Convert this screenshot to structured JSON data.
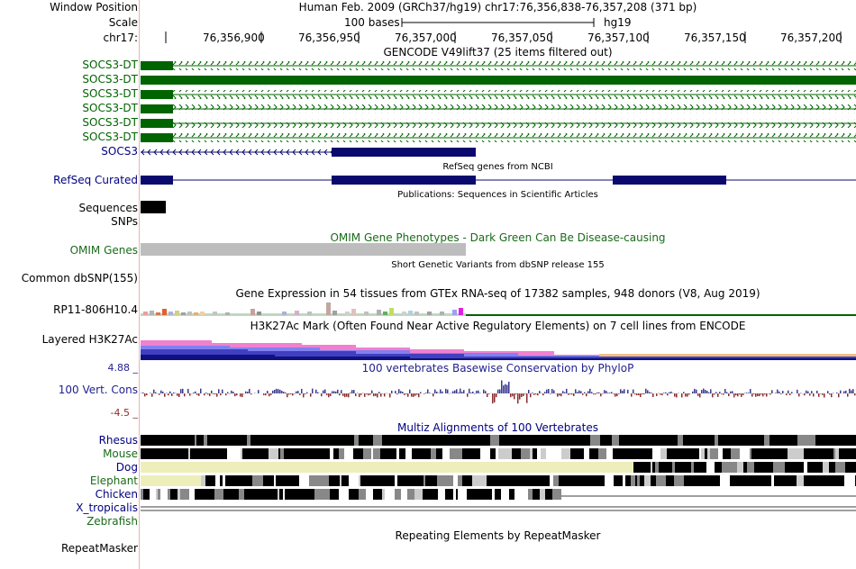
{
  "header": {
    "window_position_label": "Window Position",
    "scale_label": "Scale",
    "chrom_label": "chr17:",
    "assembly_text": "Human Feb. 2009 (GRCh37/hg19)   chr17:76,356,838-76,357,208 (371 bp)",
    "scale_text": "100 bases",
    "scale_db": "hg19",
    "ticks": [
      "76,356,900",
      "76,356,950",
      "76,357,000",
      "76,357,050",
      "76,357,100",
      "76,357,150",
      "76,357,200"
    ]
  },
  "gencode": {
    "title": "GENCODE V49lift37 (25 items filtered out)",
    "items": [
      "SOCS3-DT",
      "SOCS3-DT",
      "SOCS3-DT",
      "SOCS3-DT",
      "SOCS3-DT",
      "SOCS3-DT",
      "SOCS3"
    ]
  },
  "refseq": {
    "title": "RefSeq genes from NCBI",
    "label": "RefSeq Curated"
  },
  "publications": {
    "title": "Publications: Sequences in Scientific Articles",
    "label": "Sequences"
  },
  "snps": {
    "label": "SNPs"
  },
  "omim": {
    "title": "OMIM Gene Phenotypes - Dark Green Can Be Disease-causing",
    "label": "OMIM Genes"
  },
  "dbsnp": {
    "title": "Short Genetic Variants from dbSNP release 155",
    "label": "Common dbSNP(155)"
  },
  "gtex": {
    "title": "Gene Expression in 54 tissues from GTEx RNA-seq of 17382 samples, 948 donors (V8, Aug 2019)",
    "label": "RP11-806H10.4"
  },
  "h3k27ac": {
    "title": "H3K27Ac Mark (Often Found Near Active Regulatory Elements) on 7 cell lines from ENCODE",
    "label": "Layered H3K27Ac"
  },
  "conservation": {
    "title": "100 vertebrates Basewise Conservation by PhyloP",
    "label": "100 Vert. Cons",
    "max": "4.88 _",
    "min": "-4.5 _"
  },
  "multiz": {
    "title": "Multiz Alignments of 100 Vertebrates",
    "species": [
      "Rhesus",
      "Mouse",
      "Dog",
      "Elephant",
      "Chicken",
      "X_tropicalis",
      "Zebrafish"
    ]
  },
  "repeatmasker": {
    "title": "Repeating Elements by RepeatMasker",
    "label": "RepeatMasker"
  },
  "colors": {
    "gencode": "#006400",
    "refseq": "#0a0a6e",
    "omim": "#bdbdbd",
    "cons_pos": "#3a3a8c",
    "cons_neg": "#8b2d2d"
  }
}
